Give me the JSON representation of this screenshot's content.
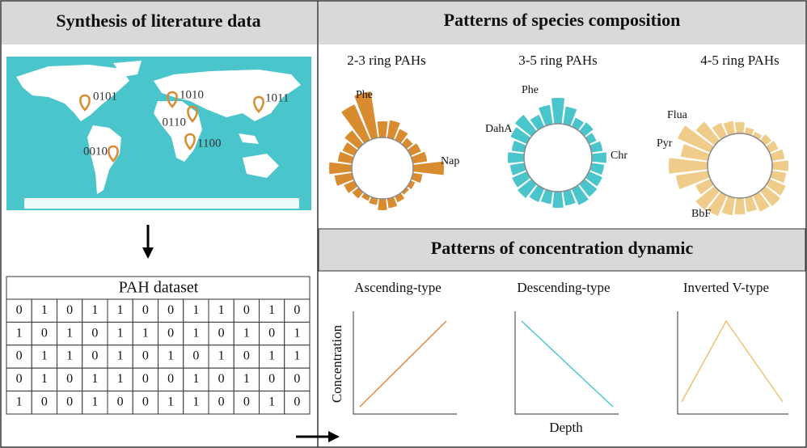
{
  "panels": {
    "synthesis": {
      "title": "Synthesis of literature data"
    },
    "species": {
      "title": "Patterns of species composition"
    },
    "dynamic": {
      "title": "Patterns of concentration dynamic"
    }
  },
  "map": {
    "pins": [
      "0101",
      "1010",
      "1011",
      "0110",
      "0010",
      "1100"
    ]
  },
  "table": {
    "title": "PAH dataset",
    "rows": [
      [
        "0",
        "1",
        "0",
        "1",
        "1",
        "0",
        "0",
        "1",
        "1",
        "0",
        "1",
        "0"
      ],
      [
        "1",
        "0",
        "1",
        "0",
        "1",
        "1",
        "0",
        "1",
        "0",
        "1",
        "0",
        "1"
      ],
      [
        "0",
        "1",
        "1",
        "0",
        "1",
        "0",
        "1",
        "0",
        "1",
        "0",
        "1",
        "1"
      ],
      [
        "0",
        "1",
        "0",
        "1",
        "1",
        "0",
        "0",
        "1",
        "0",
        "1",
        "0",
        "0"
      ],
      [
        "1",
        "0",
        "0",
        "1",
        "0",
        "0",
        "1",
        "1",
        "0",
        "0",
        "1",
        "0"
      ]
    ]
  },
  "radial_charts": [
    {
      "label": "2-3 ring PAHs",
      "color": "#d98b2f",
      "callouts": [
        "Phe",
        "Nap"
      ],
      "bars": [
        20,
        22,
        15,
        10,
        14,
        18,
        38,
        12,
        6,
        4,
        8,
        12,
        14,
        8,
        6,
        10,
        14,
        22,
        28,
        18,
        16,
        22,
        48,
        58
      ]
    },
    {
      "label": "3-5 ring PAHs",
      "color": "#4bc5cc",
      "callouts": [
        "Phe",
        "DahA",
        "Chr"
      ],
      "bars": [
        32,
        22,
        12,
        14,
        10,
        14,
        18,
        16,
        18,
        20,
        22,
        18,
        20,
        16,
        18,
        22,
        20,
        18,
        20,
        16,
        22,
        26,
        16,
        24
      ]
    },
    {
      "label": "4-5 ring PAHs",
      "color": "#f0cc8a",
      "callouts": [
        "Flua",
        "Pyr",
        "BbF"
      ],
      "bars": [
        14,
        8,
        6,
        10,
        12,
        16,
        20,
        18,
        22,
        24,
        22,
        18,
        20,
        22,
        28,
        30,
        20,
        40,
        48,
        34,
        44,
        30,
        18,
        16
      ]
    }
  ],
  "dynamic_charts": [
    {
      "label": "Ascending-type",
      "color": "#e08a3c"
    },
    {
      "label": "Descending-type",
      "color": "#4bc5cc"
    },
    {
      "label": "Inverted V-type",
      "color": "#f0c070"
    }
  ],
  "axes": {
    "y_label": "Concentration",
    "x_label": "Depth"
  }
}
